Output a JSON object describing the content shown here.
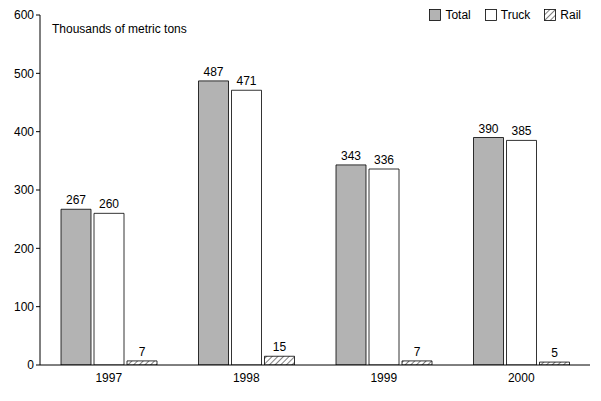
{
  "chart_data": {
    "type": "bar",
    "ylabel": "Thousands of metric tons",
    "categories": [
      "1997",
      "1998",
      "1999",
      "2000"
    ],
    "series": [
      {
        "name": "Total",
        "color": "#b3b3b3",
        "values": [
          267,
          487,
          343,
          390
        ]
      },
      {
        "name": "Truck",
        "color": "#ffffff",
        "values": [
          260,
          471,
          336,
          385
        ]
      },
      {
        "name": "Rail",
        "color": "#555555",
        "values": [
          7,
          15,
          7,
          5
        ]
      }
    ],
    "ylim": [
      0,
      600
    ],
    "yticks": [
      0,
      100,
      200,
      300,
      400,
      500,
      600
    ],
    "grid": false,
    "legend": "upper right",
    "data_labels": true
  }
}
